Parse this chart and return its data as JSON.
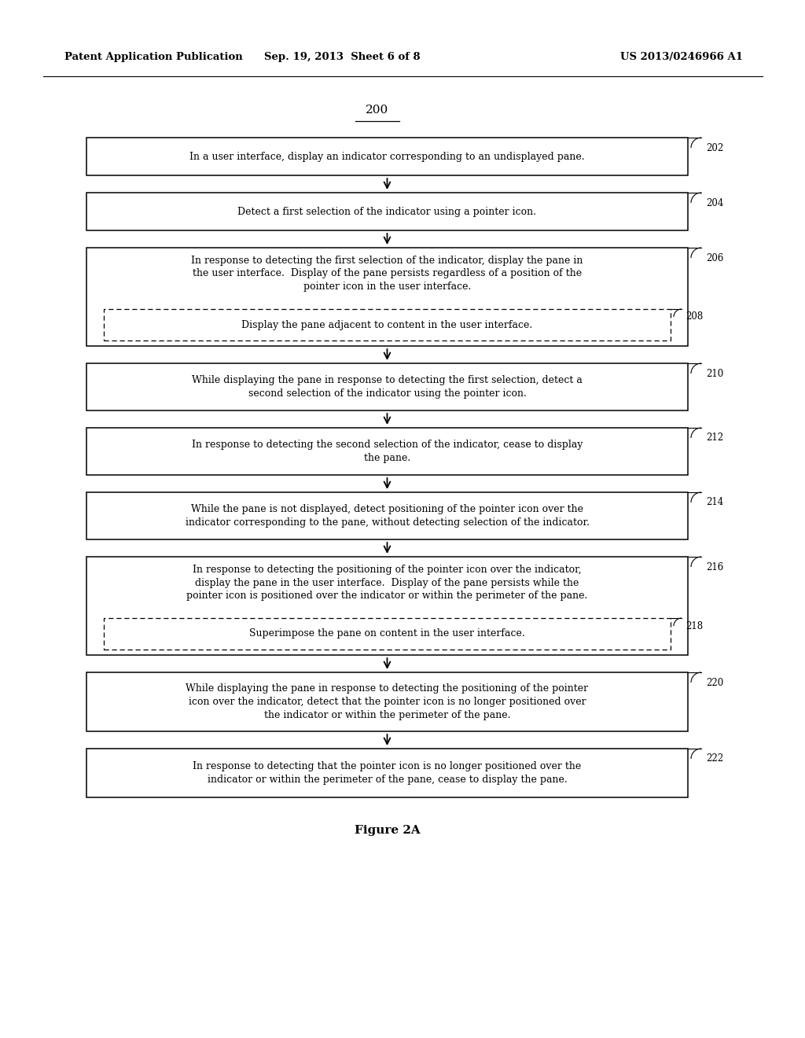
{
  "header_left": "Patent Application Publication",
  "header_mid": "Sep. 19, 2013  Sheet 6 of 8",
  "header_right": "US 2013/0246966 A1",
  "diagram_label": "200",
  "figure_label": "Figure 2A",
  "background_color": "#ffffff",
  "boxes": [
    {
      "id": 202,
      "text": "In a user interface, display an indicator corresponding to an undisplayed pane.",
      "has_sub": false
    },
    {
      "id": 204,
      "text": "Detect a first selection of the indicator using a pointer icon.",
      "has_sub": false
    },
    {
      "id": 206,
      "text": "In response to detecting the first selection of the indicator, display the pane in\nthe user interface.  Display of the pane persists regardless of a position of the\npointer icon in the user interface.",
      "has_sub": true,
      "sub_text": "Display the pane adjacent to content in the user interface.",
      "sub_id": 208
    },
    {
      "id": 210,
      "text": "While displaying the pane in response to detecting the first selection, detect a\nsecond selection of the indicator using the pointer icon.",
      "has_sub": false
    },
    {
      "id": 212,
      "text": "In response to detecting the second selection of the indicator, cease to display\nthe pane.",
      "has_sub": false
    },
    {
      "id": 214,
      "text": "While the pane is not displayed, detect positioning of the pointer icon over the\nindicator corresponding to the pane, without detecting selection of the indicator.",
      "has_sub": false
    },
    {
      "id": 216,
      "text": "In response to detecting the positioning of the pointer icon over the indicator,\ndisplay the pane in the user interface.  Display of the pane persists while the\npointer icon is positioned over the indicator or within the perimeter of the pane.",
      "has_sub": true,
      "sub_text": "Superimpose the pane on content in the user interface.",
      "sub_id": 218
    },
    {
      "id": 220,
      "text": "While displaying the pane in response to detecting the positioning of the pointer\nicon over the indicator, detect that the pointer icon is no longer positioned over\nthe indicator or within the perimeter of the pane.",
      "has_sub": false
    },
    {
      "id": 222,
      "text": "In response to detecting that the pointer icon is no longer positioned over the\nindicator or within the perimeter of the pane, cease to display the pane.",
      "has_sub": false
    }
  ]
}
